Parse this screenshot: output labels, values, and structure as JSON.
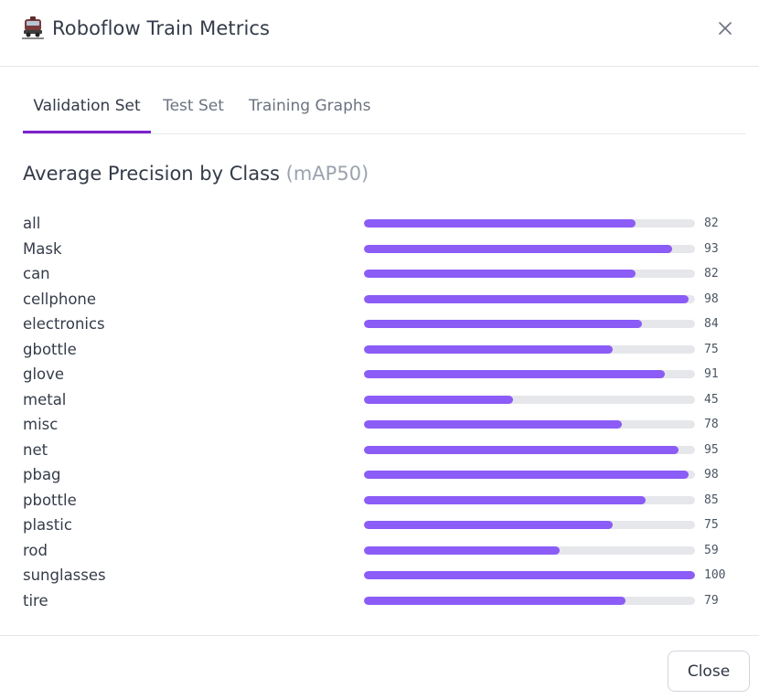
{
  "header": {
    "icon": "train-icon",
    "title": "Roboflow Train Metrics",
    "close_icon": "close-icon"
  },
  "tabs": [
    {
      "label": "Validation Set",
      "active": true
    },
    {
      "label": "Test Set",
      "active": false
    },
    {
      "label": "Training Graphs",
      "active": false
    }
  ],
  "section": {
    "title": "Average Precision by Class",
    "metric": "(mAP50)"
  },
  "colors": {
    "accent": "#7e22ce",
    "bar_fill": "#8b5cf6",
    "bar_track": "#e6e7ea"
  },
  "classes": [
    {
      "label": "all",
      "value": 82
    },
    {
      "label": "Mask",
      "value": 93
    },
    {
      "label": "can",
      "value": 82
    },
    {
      "label": "cellphone",
      "value": 98
    },
    {
      "label": "electronics",
      "value": 84
    },
    {
      "label": "gbottle",
      "value": 75
    },
    {
      "label": "glove",
      "value": 91
    },
    {
      "label": "metal",
      "value": 45
    },
    {
      "label": "misc",
      "value": 78
    },
    {
      "label": "net",
      "value": 95
    },
    {
      "label": "pbag",
      "value": 98
    },
    {
      "label": "pbottle",
      "value": 85
    },
    {
      "label": "plastic",
      "value": 75
    },
    {
      "label": "rod",
      "value": 59
    },
    {
      "label": "sunglasses",
      "value": 100
    },
    {
      "label": "tire",
      "value": 79
    }
  ],
  "footer": {
    "close_label": "Close"
  }
}
